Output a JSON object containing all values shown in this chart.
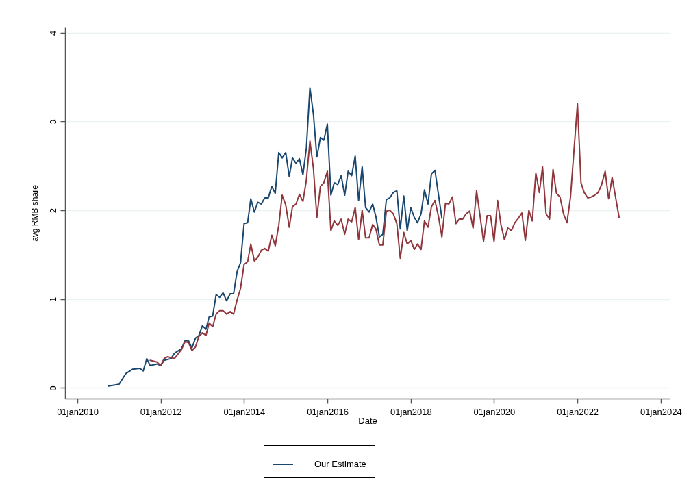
{
  "chart_data": {
    "type": "line",
    "xlabel": "Date",
    "ylabel": "avg RMB share",
    "xlim": [
      "2009-09-15",
      "2024-03-20"
    ],
    "ylim": [
      -0.12,
      4.06
    ],
    "xticks": [
      {
        "value": "2010-01-01",
        "label": "01jan2010"
      },
      {
        "value": "2012-01-01",
        "label": "01jan2012"
      },
      {
        "value": "2014-01-01",
        "label": "01jan2014"
      },
      {
        "value": "2016-01-01",
        "label": "01jan2016"
      },
      {
        "value": "2018-01-01",
        "label": "01jan2018"
      },
      {
        "value": "2020-01-01",
        "label": "01jan2020"
      },
      {
        "value": "2022-01-01",
        "label": "01jan2022"
      },
      {
        "value": "2024-01-01",
        "label": "01jan2024"
      }
    ],
    "yticks": [
      0,
      1,
      2,
      3,
      4
    ],
    "grid": "y",
    "legend": "bottom",
    "line_style": "solid",
    "marker": "none",
    "series": [
      {
        "name": "Our Estimate",
        "color": "#1a476f",
        "x": [
          "2010-10",
          "2011-01",
          "2011-03",
          "2011-05",
          "2011-07",
          "2011-08",
          "2011-09",
          "2011-10",
          "2011-12",
          "2012-01",
          "2012-02",
          "2012-04",
          "2012-05",
          "2012-07",
          "2012-08",
          "2012-09",
          "2012-10",
          "2012-11",
          "2012-12",
          "2013-01",
          "2013-02",
          "2013-03",
          "2013-04",
          "2013-05",
          "2013-06",
          "2013-07",
          "2013-08",
          "2013-09",
          "2013-10",
          "2013-11",
          "2013-12",
          "2014-01",
          "2014-02",
          "2014-03",
          "2014-04",
          "2014-05",
          "2014-06",
          "2014-07",
          "2014-08",
          "2014-09",
          "2014-10",
          "2014-11",
          "2014-12",
          "2015-01",
          "2015-02",
          "2015-03",
          "2015-04",
          "2015-05",
          "2015-06",
          "2015-07",
          "2015-08",
          "2015-09",
          "2015-10",
          "2015-11",
          "2015-12",
          "2016-01",
          "2016-02",
          "2016-03",
          "2016-04",
          "2016-05",
          "2016-06",
          "2016-07",
          "2016-08",
          "2016-09",
          "2016-10",
          "2016-11",
          "2016-12",
          "2017-01",
          "2017-02",
          "2017-03",
          "2017-04",
          "2017-05",
          "2017-06",
          "2017-07",
          "2017-08",
          "2017-09",
          "2017-10",
          "2017-11",
          "2017-12",
          "2018-01",
          "2018-02",
          "2018-03",
          "2018-04",
          "2018-05",
          "2018-06",
          "2018-07",
          "2018-08",
          "2018-10"
        ],
        "values": [
          0.02,
          0.04,
          0.16,
          0.21,
          0.22,
          0.19,
          0.33,
          0.25,
          0.27,
          0.25,
          0.31,
          0.33,
          0.39,
          0.44,
          0.53,
          0.53,
          0.45,
          0.56,
          0.59,
          0.7,
          0.66,
          0.8,
          0.81,
          1.05,
          1.02,
          1.07,
          0.98,
          1.06,
          1.06,
          1.31,
          1.41,
          1.85,
          1.86,
          2.13,
          1.98,
          2.09,
          2.07,
          2.14,
          2.14,
          2.27,
          2.19,
          2.65,
          2.59,
          2.65,
          2.38,
          2.59,
          2.53,
          2.58,
          2.4,
          2.7,
          3.38,
          3.08,
          2.6,
          2.82,
          2.79,
          2.97,
          2.17,
          2.31,
          2.29,
          2.39,
          2.17,
          2.44,
          2.39,
          2.61,
          2.11,
          2.49,
          2.03,
          1.98,
          2.07,
          1.93,
          1.7,
          1.73,
          2.12,
          2.14,
          2.2,
          2.22,
          1.79,
          2.16,
          1.77,
          2.03,
          1.92,
          1.86,
          1.96,
          2.23,
          2.07,
          2.41,
          2.45,
          1.91
        ]
      },
      {
        "color": "#90353b",
        "x": [
          "2011-10",
          "2011-12",
          "2012-01",
          "2012-02",
          "2012-03",
          "2012-05",
          "2012-07",
          "2012-08",
          "2012-09",
          "2012-10",
          "2012-11",
          "2012-12",
          "2013-01",
          "2013-02",
          "2013-03",
          "2013-04",
          "2013-05",
          "2013-06",
          "2013-07",
          "2013-08",
          "2013-09",
          "2013-10",
          "2013-11",
          "2013-12",
          "2014-01",
          "2014-02",
          "2014-03",
          "2014-04",
          "2014-05",
          "2014-06",
          "2014-07",
          "2014-08",
          "2014-09",
          "2014-10",
          "2014-11",
          "2014-12",
          "2015-01",
          "2015-02",
          "2015-03",
          "2015-04",
          "2015-05",
          "2015-06",
          "2015-07",
          "2015-08",
          "2015-09",
          "2015-10",
          "2015-11",
          "2015-12",
          "2016-01",
          "2016-02",
          "2016-03",
          "2016-04",
          "2016-05",
          "2016-06",
          "2016-07",
          "2016-08",
          "2016-09",
          "2016-10",
          "2016-11",
          "2016-12",
          "2017-01",
          "2017-02",
          "2017-03",
          "2017-04",
          "2017-05",
          "2017-06",
          "2017-07",
          "2017-08",
          "2017-09",
          "2017-10",
          "2017-11",
          "2017-12",
          "2018-01",
          "2018-02",
          "2018-03",
          "2018-04",
          "2018-05",
          "2018-06",
          "2018-07",
          "2018-08",
          "2018-09",
          "2018-10",
          "2018-11",
          "2018-12",
          "2019-01",
          "2019-02",
          "2019-03",
          "2019-04",
          "2019-05",
          "2019-06",
          "2019-07",
          "2019-08",
          "2019-10",
          "2019-11",
          "2019-12",
          "2020-01",
          "2020-02",
          "2020-03",
          "2020-04",
          "2020-05",
          "2020-06",
          "2020-07",
          "2020-08",
          "2020-09",
          "2020-10",
          "2020-11",
          "2020-12",
          "2021-01",
          "2021-02",
          "2021-03",
          "2021-04",
          "2021-05",
          "2021-06",
          "2021-07",
          "2021-08",
          "2021-09",
          "2021-10",
          "2021-11",
          "2022-01",
          "2022-02",
          "2022-03",
          "2022-04",
          "2022-05",
          "2022-06",
          "2022-07",
          "2022-08",
          "2022-09",
          "2022-10",
          "2022-11",
          "2023-01"
        ],
        "values": [
          0.31,
          0.29,
          0.25,
          0.33,
          0.35,
          0.33,
          0.43,
          0.52,
          0.51,
          0.42,
          0.46,
          0.58,
          0.62,
          0.59,
          0.73,
          0.69,
          0.83,
          0.87,
          0.87,
          0.83,
          0.86,
          0.83,
          0.99,
          1.12,
          1.39,
          1.42,
          1.62,
          1.43,
          1.47,
          1.55,
          1.57,
          1.54,
          1.72,
          1.6,
          1.83,
          2.17,
          2.06,
          1.81,
          2.04,
          2.07,
          2.18,
          2.1,
          2.34,
          2.78,
          2.47,
          1.92,
          2.27,
          2.31,
          2.44,
          1.77,
          1.88,
          1.83,
          1.9,
          1.73,
          1.9,
          1.87,
          2.03,
          1.67,
          2.0,
          1.69,
          1.69,
          1.84,
          1.79,
          1.61,
          1.61,
          1.99,
          2.0,
          1.96,
          1.85,
          1.46,
          1.75,
          1.62,
          1.66,
          1.56,
          1.62,
          1.56,
          1.88,
          1.81,
          2.04,
          2.11,
          1.93,
          1.7,
          2.08,
          2.07,
          2.15,
          1.85,
          1.9,
          1.9,
          1.96,
          1.99,
          1.8,
          2.22,
          1.65,
          1.94,
          1.94,
          1.65,
          2.11,
          1.84,
          1.67,
          1.8,
          1.77,
          1.86,
          1.91,
          1.97,
          1.66,
          2.0,
          1.88,
          2.42,
          2.2,
          2.49,
          1.96,
          1.9,
          2.46,
          2.19,
          2.15,
          1.96,
          1.86,
          2.15,
          3.2,
          2.31,
          2.2,
          2.14,
          2.15,
          2.17,
          2.2,
          2.29,
          2.44,
          2.13,
          2.37,
          1.92
        ]
      }
    ]
  }
}
